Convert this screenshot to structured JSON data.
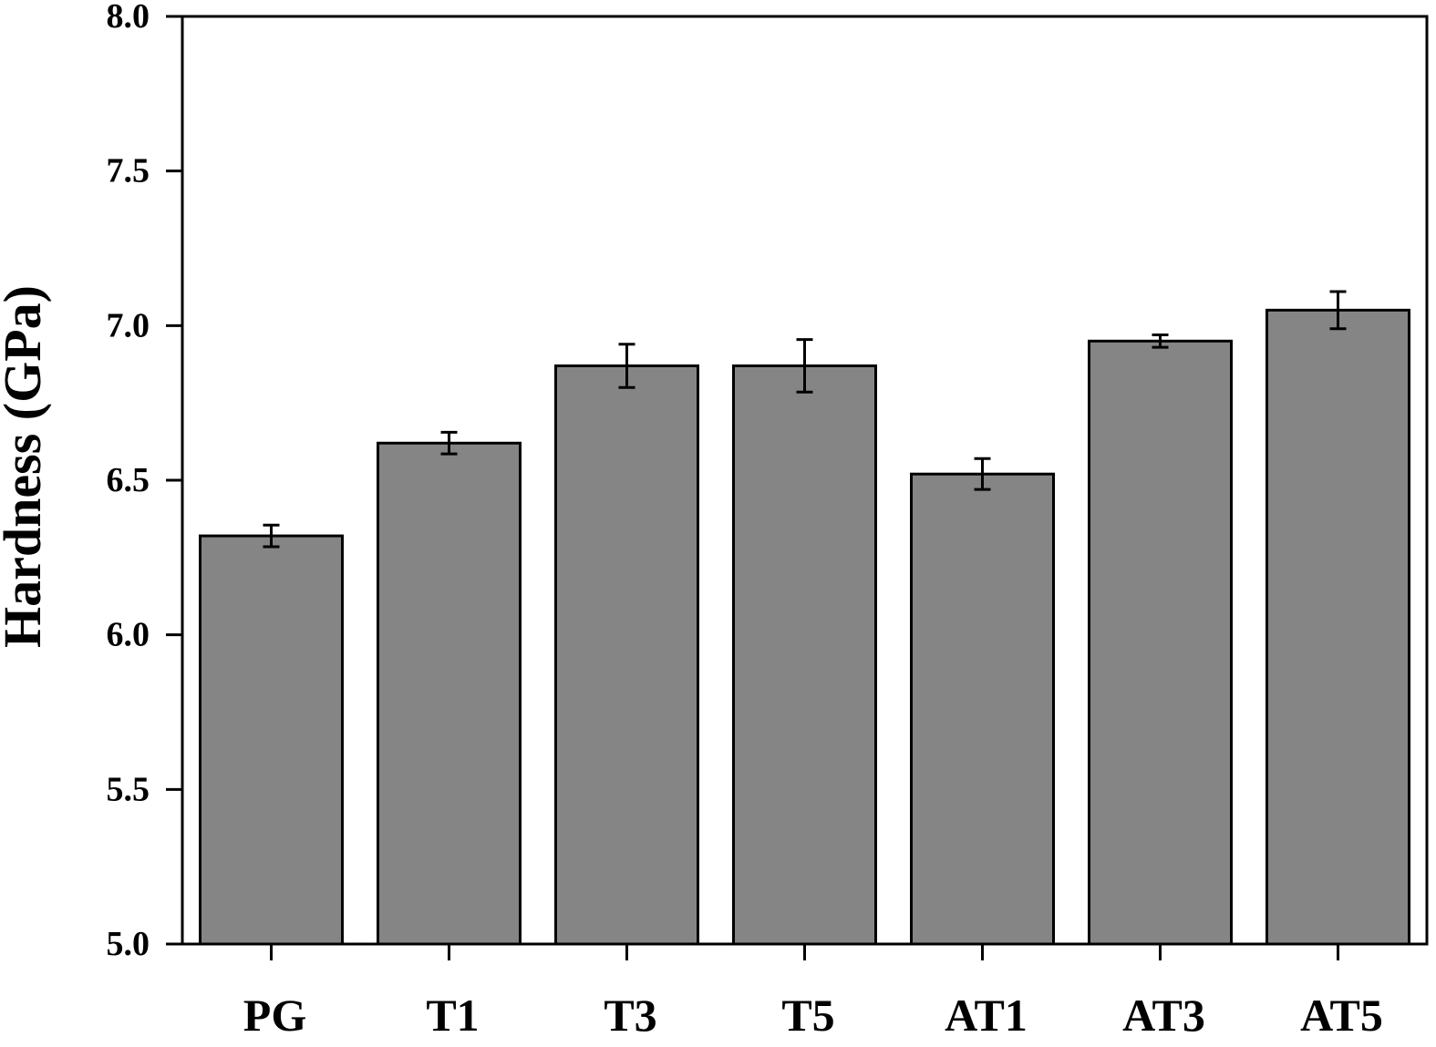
{
  "chart_data": {
    "type": "bar",
    "title": "",
    "xlabel": "",
    "ylabel": "Hardness (GPa)",
    "ylim": [
      5.0,
      8.0
    ],
    "yticks": [
      5.0,
      5.5,
      6.0,
      6.5,
      7.0,
      7.5,
      8.0
    ],
    "ytick_labels": [
      "5.0",
      "5.5",
      "6.0",
      "6.5",
      "7.0",
      "7.5",
      "8.0"
    ],
    "categories": [
      "PG",
      "T1",
      "T3",
      "T5",
      "AT1",
      "AT3",
      "AT5"
    ],
    "values": [
      6.32,
      6.62,
      6.87,
      6.87,
      6.52,
      6.95,
      7.05
    ],
    "errors": [
      0.035,
      0.035,
      0.07,
      0.085,
      0.05,
      0.02,
      0.06
    ],
    "bar_color": "#858585",
    "grid": false,
    "legend": "none"
  }
}
